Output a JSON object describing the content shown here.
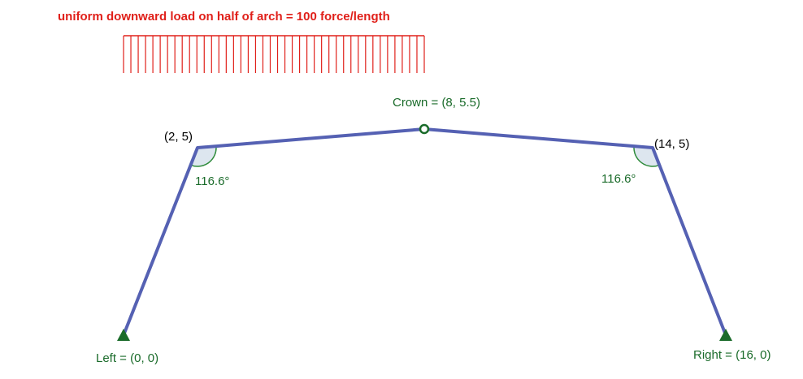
{
  "load": {
    "title": "uniform downward load on half of arch = 100 force/length"
  },
  "points": {
    "left": {
      "label": "Left = (0, 0)",
      "x": 0,
      "y": 0
    },
    "p1": {
      "label": "(2, 5)",
      "x": 2,
      "y": 5
    },
    "crown": {
      "label": "Crown = (8, 5.5)",
      "x": 8,
      "y": 5.5
    },
    "p2": {
      "label": "(14, 5)",
      "x": 14,
      "y": 5
    },
    "right": {
      "label": "Right = (16, 0)",
      "x": 16,
      "y": 0
    }
  },
  "angles": {
    "left": "116.6°",
    "right": "116.6°"
  },
  "colors": {
    "member": "#5561b3",
    "load": "#e0201a",
    "support": "#1a6b2a",
    "angle_fill": "#dde6ef",
    "angle_stroke": "#2e8b3a"
  }
}
